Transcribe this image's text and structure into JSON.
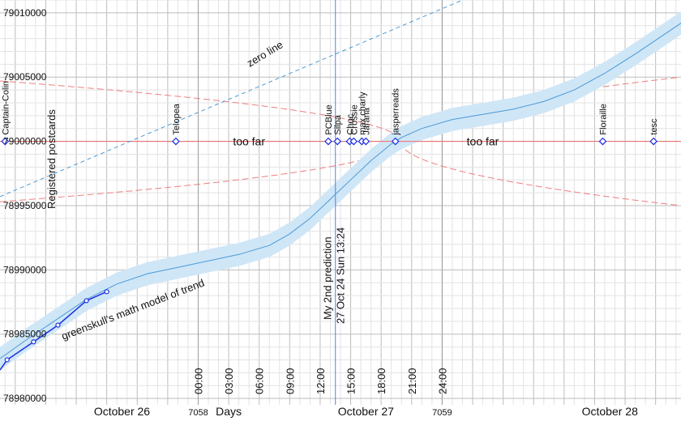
{
  "chart_data": {
    "type": "line",
    "y_ticks": [
      "79010000",
      "79005000",
      "79000000",
      "78995000",
      "78990000",
      "78985000",
      "78980000"
    ],
    "ylim": [
      78979500,
      79011000
    ],
    "xlim_hours": [
      -19.5,
      47.5
    ],
    "hour_ticks": [
      {
        "h": 0,
        "label": "00:00"
      },
      {
        "h": 3,
        "label": "03:00"
      },
      {
        "h": 6,
        "label": "06:00"
      },
      {
        "h": 9,
        "label": "09:00"
      },
      {
        "h": 12,
        "label": "12:00"
      },
      {
        "h": 15,
        "label": "15:00"
      },
      {
        "h": 18,
        "label": "18:00"
      },
      {
        "h": 21,
        "label": "21:00"
      },
      {
        "h": 24,
        "label": "24:00"
      }
    ],
    "day_labels": [
      {
        "h": -7.5,
        "label": "October 26"
      },
      {
        "h": 16.5,
        "label": "October 27"
      },
      {
        "h": 40.5,
        "label": "October 28"
      }
    ],
    "days_label": "Days",
    "day_number_labels": [
      {
        "h": 0,
        "label": "7058"
      },
      {
        "h": 24,
        "label": "7059"
      }
    ],
    "target_value": 79000000,
    "target_labels": [
      {
        "h": 5,
        "label": "too far"
      },
      {
        "h": 28,
        "label": "too far"
      }
    ],
    "zero_line_label": "zero line",
    "registered_label": "Registered postcards",
    "registered_series": {
      "x_hours": [
        -18.8,
        -16.2,
        -13.8,
        -11.0,
        -9.0
      ],
      "values": [
        78983000,
        78984400,
        78985700,
        78987600,
        78988300
      ]
    },
    "trend_label": "greenskull's math model of trend",
    "trend_series": {
      "x_hours": [
        -19.5,
        -17,
        -14,
        -11,
        -8,
        -5,
        -2,
        1,
        4,
        7,
        9,
        11,
        13,
        15,
        17,
        19,
        20,
        22,
        25,
        28,
        31,
        34,
        37,
        40,
        43,
        46,
        47.5
      ],
      "values": [
        78983100,
        78984500,
        78986100,
        78987700,
        78988900,
        78989700,
        78990200,
        78990700,
        78991200,
        78991900,
        78992800,
        78994000,
        78995500,
        78997000,
        78998500,
        78999800,
        79000300,
        79001000,
        79001700,
        79002100,
        79002500,
        79003100,
        79004000,
        79005300,
        79006800,
        79008400,
        79009200
      ]
    },
    "prediction": {
      "h": 13.5,
      "line1": "My 2nd prediction",
      "line2": "27 Oct 24 Sun 13:24"
    },
    "predictions": [
      {
        "name": "Captain-Colin",
        "h": -19.0
      },
      {
        "name": "Telopea",
        "h": -2.2
      },
      {
        "name": "PCBlue",
        "h": 12.8
      },
      {
        "name": "Silpa",
        "h": 13.7
      },
      {
        "name": "Choc",
        "h": 14.9
      },
      {
        "name": "Crossie",
        "h": 15.3
      },
      {
        "name": "max.charly",
        "h": 16.1
      },
      {
        "name": "Jarana",
        "h": 16.5
      },
      {
        "name": "jasperreads",
        "h": 19.4
      },
      {
        "name": "Floraille",
        "h": 39.8
      },
      {
        "name": "tesc",
        "h": 44.8
      }
    ]
  }
}
